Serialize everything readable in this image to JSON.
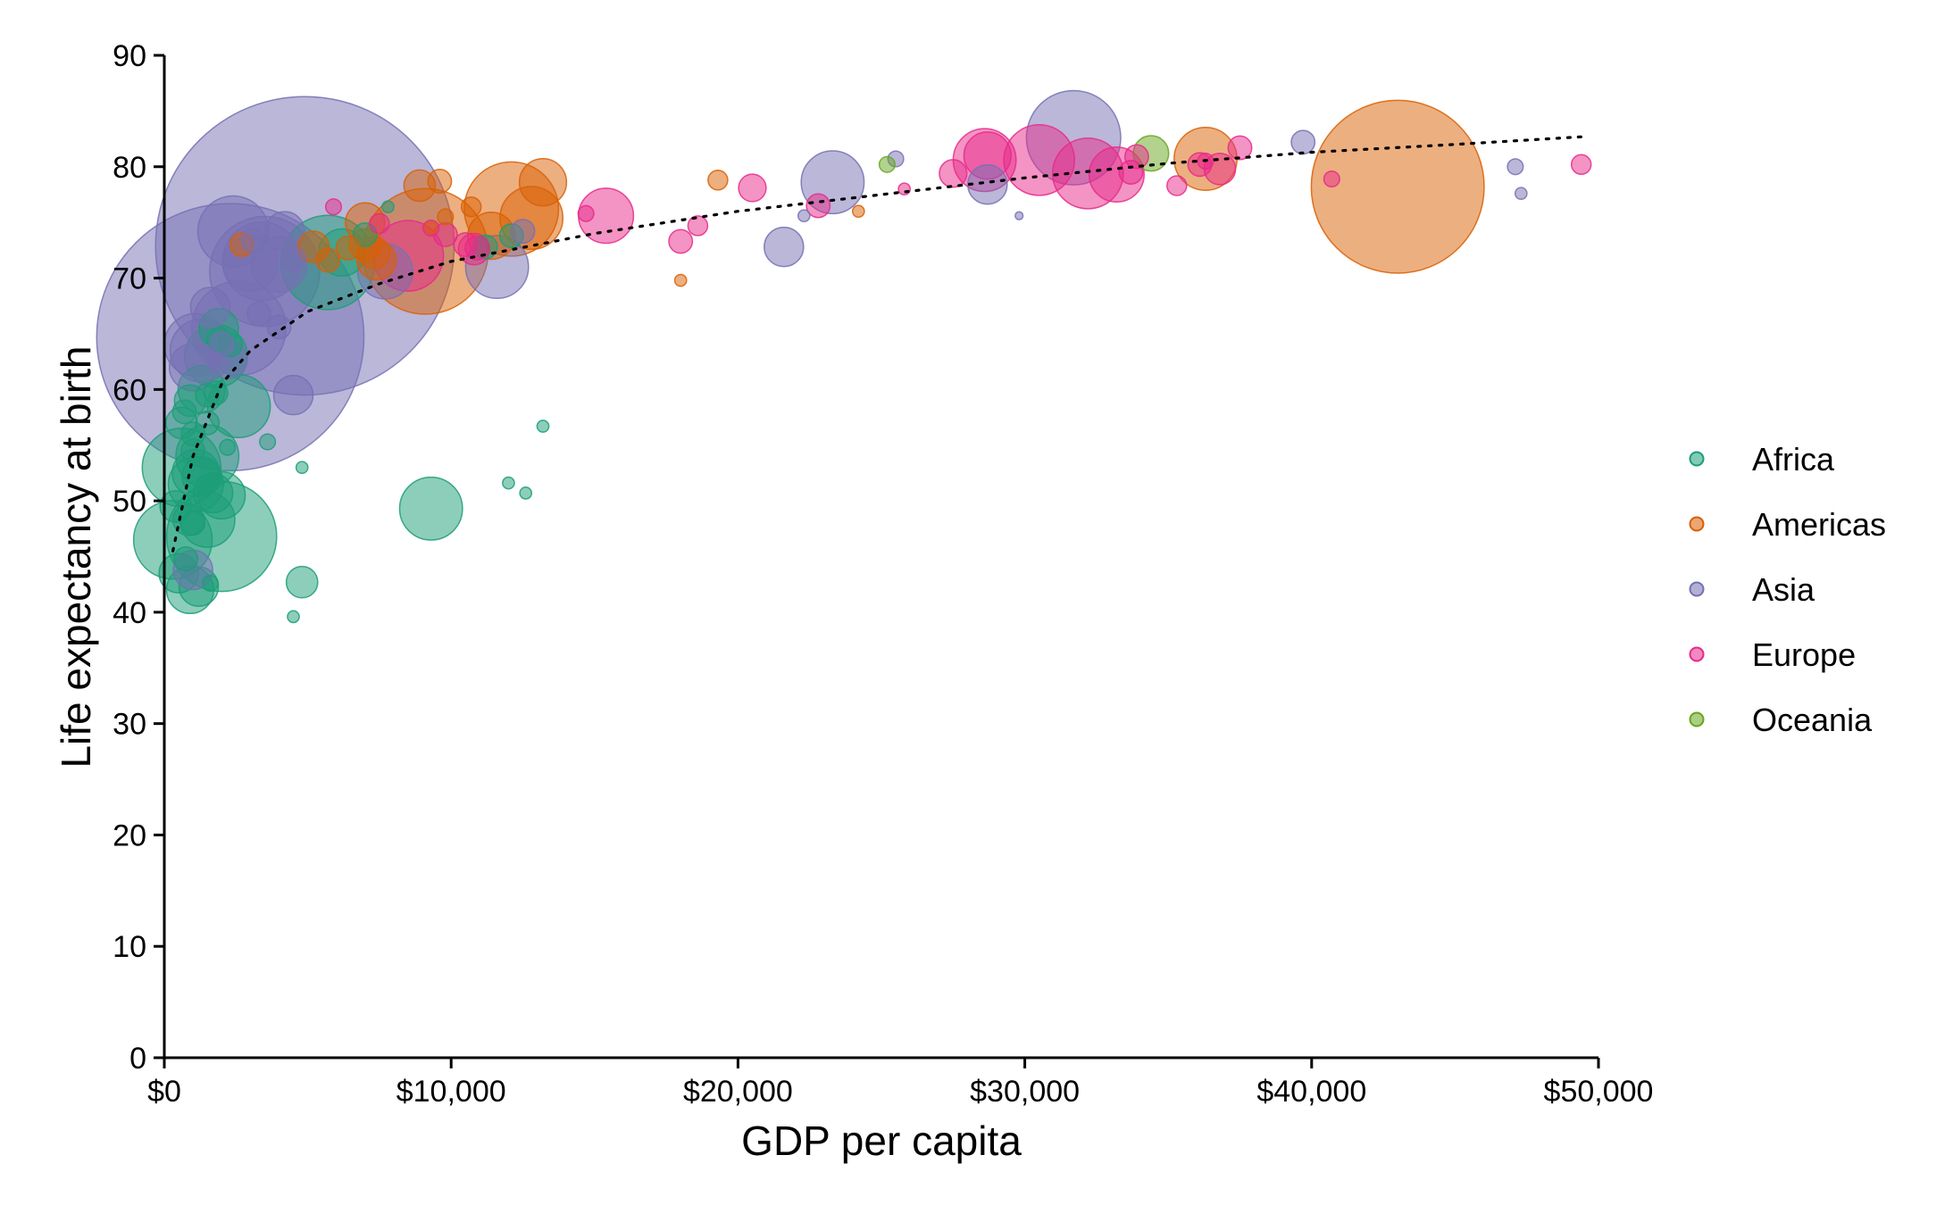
{
  "chart_data": {
    "type": "scatter",
    "xlabel": "GDP per capita",
    "ylabel": "Life expectancy at birth",
    "xlim": [
      0,
      50000
    ],
    "ylim": [
      0,
      90
    ],
    "x_ticks": [
      0,
      10000,
      20000,
      30000,
      40000,
      50000
    ],
    "x_tick_labels": [
      "$0",
      "$10,000",
      "$20,000",
      "$30,000",
      "$40,000",
      "$50,000"
    ],
    "y_ticks": [
      0,
      10,
      20,
      30,
      40,
      50,
      60,
      70,
      80,
      90
    ],
    "y_tick_labels": [
      "0",
      "10",
      "20",
      "30",
      "40",
      "50",
      "60",
      "70",
      "80",
      "90"
    ],
    "grid": false,
    "legend_position": "right",
    "size_encoding": "population (relative bubble radius)",
    "legend": [
      {
        "name": "Africa",
        "color": "#1b9e77"
      },
      {
        "name": "Americas",
        "color": "#d95f02"
      },
      {
        "name": "Asia",
        "color": "#7570b3"
      },
      {
        "name": "Europe",
        "color": "#e7298a"
      },
      {
        "name": "Oceania",
        "color": "#66a61e"
      }
    ],
    "trend": {
      "style": "dotted",
      "color": "#000000",
      "points": [
        [
          300,
          45.5
        ],
        [
          1000,
          54
        ],
        [
          2000,
          60.5
        ],
        [
          3000,
          63.5
        ],
        [
          5000,
          67
        ],
        [
          7500,
          69.5
        ],
        [
          10000,
          71.5
        ],
        [
          15000,
          74
        ],
        [
          20000,
          76
        ],
        [
          25000,
          77.5
        ],
        [
          30000,
          79
        ],
        [
          35000,
          80.3
        ],
        [
          40000,
          81.3
        ],
        [
          45000,
          82
        ],
        [
          49500,
          82.7
        ]
      ]
    },
    "series": [
      {
        "name": "Africa",
        "color": "#1b9e77",
        "points": [
          [
            300,
            46.5,
            10
          ],
          [
            500,
            43.5,
            5
          ],
          [
            400,
            49.5,
            4
          ],
          [
            750,
            44.8,
            3
          ],
          [
            900,
            42,
            6
          ],
          [
            1200,
            42.3,
            5
          ],
          [
            1600,
            42.6,
            2
          ],
          [
            600,
            53,
            10
          ],
          [
            1100,
            52.5,
            6
          ],
          [
            1100,
            51.5,
            7
          ],
          [
            1300,
            52.2,
            5
          ],
          [
            850,
            48.3,
            4
          ],
          [
            1000,
            48,
            3
          ],
          [
            1500,
            48.3,
            7
          ],
          [
            1700,
            50.7,
            5
          ],
          [
            2000,
            50.5,
            6
          ],
          [
            2000,
            46.8,
            14
          ],
          [
            1000,
            56,
            3
          ],
          [
            600,
            57,
            4
          ],
          [
            1500,
            57,
            3
          ],
          [
            1000,
            54.5,
            3
          ],
          [
            1500,
            54,
            8
          ],
          [
            2200,
            54.8,
            2
          ],
          [
            700,
            58,
            3
          ],
          [
            900,
            59,
            4
          ],
          [
            1300,
            60,
            6
          ],
          [
            1500,
            59.5,
            3
          ],
          [
            1800,
            59.7,
            3
          ],
          [
            2600,
            58.5,
            8
          ],
          [
            1800,
            63,
            8
          ],
          [
            1900,
            64.5,
            3
          ],
          [
            2300,
            64,
            3
          ],
          [
            1900,
            65.5,
            5
          ],
          [
            3600,
            55.3,
            2
          ],
          [
            4800,
            53,
            1.5
          ],
          [
            4800,
            42.7,
            4
          ],
          [
            4500,
            39.6,
            1.5
          ],
          [
            5700,
            71.4,
            12
          ],
          [
            6200,
            72.3,
            6
          ],
          [
            7000,
            73.9,
            3
          ],
          [
            7800,
            76.4,
            1.5
          ],
          [
            9300,
            49.3,
            8
          ],
          [
            12000,
            51.6,
            1.5
          ],
          [
            12600,
            50.7,
            1.5
          ],
          [
            13200,
            56.7,
            1.5
          ],
          [
            11200,
            72.8,
            3
          ],
          [
            12100,
            73.8,
            3
          ]
        ]
      },
      {
        "name": "Americas",
        "color": "#d95f02",
        "points": [
          [
            2700,
            73,
            3
          ],
          [
            5200,
            72.8,
            4
          ],
          [
            5700,
            71.6,
            3
          ],
          [
            7000,
            73,
            4
          ],
          [
            7000,
            75,
            5
          ],
          [
            7300,
            72.3,
            4
          ],
          [
            7400,
            71.6,
            5
          ],
          [
            9100,
            72.4,
            16
          ],
          [
            8900,
            78.3,
            4
          ],
          [
            9600,
            78.7,
            3
          ],
          [
            9800,
            75.5,
            2
          ],
          [
            10700,
            76.4,
            2.5
          ],
          [
            11400,
            73.8,
            6
          ],
          [
            12100,
            76.2,
            12
          ],
          [
            12800,
            75.4,
            8
          ],
          [
            13200,
            78.6,
            6
          ],
          [
            9300,
            74.5,
            1.5
          ],
          [
            6400,
            72.7,
            3
          ],
          [
            18000,
            69.8,
            1.5
          ],
          [
            19300,
            78.8,
            2.5
          ],
          [
            36300,
            80.7,
            8
          ],
          [
            43000,
            78.2,
            22
          ],
          [
            24200,
            76,
            1.5
          ]
        ]
      },
      {
        "name": "Asia",
        "color": "#7570b3",
        "points": [
          [
            4900,
            72.9,
            38
          ],
          [
            2300,
            64.7,
            34
          ],
          [
            1000,
            62,
            6
          ],
          [
            1100,
            64,
            8
          ],
          [
            1300,
            63.5,
            8
          ],
          [
            1000,
            43.8,
            5
          ],
          [
            1600,
            67.4,
            5
          ],
          [
            2400,
            74.2,
            9
          ],
          [
            2600,
            65.5,
            12
          ],
          [
            3100,
            73.4,
            3
          ],
          [
            3000,
            71.3,
            7
          ],
          [
            3400,
            71.5,
            10
          ],
          [
            3500,
            70.6,
            14
          ],
          [
            4000,
            71.2,
            7
          ],
          [
            4200,
            74.2,
            5
          ],
          [
            4500,
            71.7,
            3
          ],
          [
            4500,
            59.5,
            5
          ],
          [
            2200,
            62.7,
            5
          ],
          [
            3300,
            66.8,
            3
          ],
          [
            7700,
            70.6,
            7
          ],
          [
            11600,
            71,
            8
          ],
          [
            12500,
            74.2,
            3
          ],
          [
            21600,
            72.8,
            5
          ],
          [
            22300,
            75.6,
            1.5
          ],
          [
            23300,
            78.6,
            8
          ],
          [
            25500,
            80.7,
            2
          ],
          [
            28700,
            78.4,
            5
          ],
          [
            29800,
            75.6,
            1
          ],
          [
            31700,
            82.6,
            12
          ],
          [
            39700,
            82.2,
            3
          ],
          [
            47100,
            80,
            2
          ],
          [
            47300,
            77.6,
            1.5
          ],
          [
            2000,
            64.1,
            3
          ],
          [
            4000,
            65.6,
            3
          ]
        ]
      },
      {
        "name": "Europe",
        "color": "#e7298a",
        "points": [
          [
            5900,
            76.4,
            2
          ],
          [
            7500,
            74.9,
            2.5
          ],
          [
            8500,
            72,
            9
          ],
          [
            9300,
            74.5,
            2
          ],
          [
            9800,
            73.9,
            3
          ],
          [
            10500,
            73,
            3
          ],
          [
            10800,
            72.6,
            4
          ],
          [
            10900,
            72.7,
            3
          ],
          [
            14700,
            75.8,
            2
          ],
          [
            15400,
            75.6,
            7
          ],
          [
            18000,
            73.3,
            3
          ],
          [
            18600,
            74.7,
            2.5
          ],
          [
            20500,
            78.1,
            3.5
          ],
          [
            22800,
            76.5,
            3
          ],
          [
            25800,
            78,
            1.5
          ],
          [
            27500,
            79.4,
            3.5
          ],
          [
            28600,
            80.6,
            8
          ],
          [
            28700,
            81,
            6
          ],
          [
            30500,
            80.6,
            9
          ],
          [
            32200,
            79.4,
            9
          ],
          [
            33200,
            79.3,
            7
          ],
          [
            33700,
            79.5,
            3
          ],
          [
            33900,
            80.9,
            3
          ],
          [
            35300,
            78.3,
            2.5
          ],
          [
            36100,
            80.2,
            3
          ],
          [
            36300,
            80.5,
            2
          ],
          [
            36800,
            79.8,
            4
          ],
          [
            37500,
            81.7,
            3
          ],
          [
            40700,
            78.9,
            2
          ],
          [
            49400,
            80.2,
            2.5
          ]
        ]
      },
      {
        "name": "Oceania",
        "color": "#66a61e",
        "points": [
          [
            25200,
            80.2,
            2
          ],
          [
            34400,
            81.2,
            4.5
          ]
        ]
      }
    ]
  }
}
